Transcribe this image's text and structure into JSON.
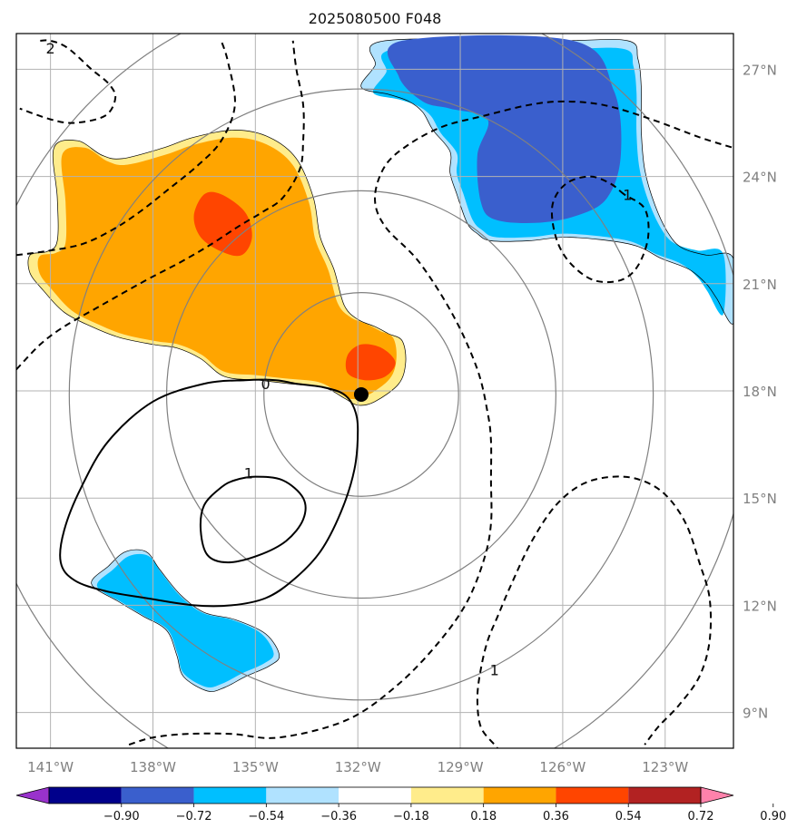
{
  "chart_data": {
    "type": "contour-map",
    "title": "2025080500 F048",
    "projection": "lon-lat",
    "xlim": [
      -142,
      -121
    ],
    "ylim": [
      8,
      28
    ],
    "x_ticks": [
      {
        "value": -141,
        "label": "141°W"
      },
      {
        "value": -138,
        "label": "138°W"
      },
      {
        "value": -135,
        "label": "135°W"
      },
      {
        "value": -132,
        "label": "132°W"
      },
      {
        "value": -129,
        "label": "129°W"
      },
      {
        "value": -126,
        "label": "126°W"
      },
      {
        "value": -123,
        "label": "123°W"
      }
    ],
    "y_ticks": [
      {
        "value": 9,
        "label": "9°N"
      },
      {
        "value": 12,
        "label": "12°N"
      },
      {
        "value": 15,
        "label": "15°N"
      },
      {
        "value": 18,
        "label": "18°N"
      },
      {
        "value": 21,
        "label": "21°N"
      },
      {
        "value": 24,
        "label": "24°N"
      },
      {
        "value": 27,
        "label": "27°N"
      }
    ],
    "grid": true,
    "center": {
      "lon": -131.9,
      "lat": 17.9
    },
    "range_rings_deg": [
      2.85,
      5.7,
      8.55
    ],
    "colorbar": {
      "placement": "bottom",
      "extend": "both",
      "levels": [
        -0.9,
        -0.72,
        -0.54,
        -0.36,
        -0.18,
        0.18,
        0.36,
        0.54,
        0.72,
        0.9
      ],
      "level_labels": [
        "−0.90",
        "−0.72",
        "−0.54",
        "−0.36",
        "−0.18",
        "0.18",
        "0.36",
        "0.54",
        "0.72",
        "0.90"
      ],
      "colors": [
        "#9932cc",
        "#00008b",
        "#3a5fcd",
        "#00bfff",
        "#b0e2ff",
        "#ffffff",
        "#ffec8b",
        "#ffa500",
        "#ff4500",
        "#b22222",
        "#ff82ab"
      ]
    },
    "shaded_regions": [
      {
        "name": "orange-region",
        "min_level": 0.18,
        "points": [
          [
            -141.6,
            21.8
          ],
          [
            -141.1,
            21.9
          ],
          [
            -140.8,
            22.2
          ],
          [
            -140.8,
            23.4
          ],
          [
            -140.9,
            24.8
          ],
          [
            -140.2,
            25.0
          ],
          [
            -139.5,
            24.6
          ],
          [
            -138.9,
            24.5
          ],
          [
            -137.7,
            24.8
          ],
          [
            -136.8,
            25.1
          ],
          [
            -135.6,
            25.3
          ],
          [
            -134.6,
            25.1
          ],
          [
            -133.8,
            24.5
          ],
          [
            -133.3,
            23.4
          ],
          [
            -133.1,
            22.3
          ],
          [
            -132.7,
            21.4
          ],
          [
            -132.4,
            20.4
          ],
          [
            -132.0,
            20.0
          ],
          [
            -131.5,
            19.8
          ],
          [
            -131.1,
            19.6
          ],
          [
            -130.7,
            19.4
          ],
          [
            -130.6,
            18.8
          ],
          [
            -130.8,
            18.2
          ],
          [
            -131.5,
            17.7
          ],
          [
            -132.0,
            17.6
          ],
          [
            -132.4,
            17.8
          ],
          [
            -133.0,
            18.1
          ],
          [
            -134.0,
            18.2
          ],
          [
            -134.9,
            18.3
          ],
          [
            -135.9,
            18.4
          ],
          [
            -136.6,
            18.9
          ],
          [
            -137.3,
            19.2
          ],
          [
            -138.0,
            19.3
          ],
          [
            -139.0,
            19.5
          ],
          [
            -139.8,
            19.8
          ],
          [
            -140.6,
            20.2
          ],
          [
            -141.2,
            20.8
          ],
          [
            -141.6,
            21.3
          ]
        ]
      },
      {
        "name": "blue-region-northeast",
        "min_level": -0.18,
        "points": [
          [
            -131.9,
            26.5
          ],
          [
            -131.5,
            27.1
          ],
          [
            -131.2,
            27.8
          ],
          [
            -126.2,
            27.8
          ],
          [
            -124.1,
            27.8
          ],
          [
            -123.8,
            27.3
          ],
          [
            -123.7,
            26.5
          ],
          [
            -123.7,
            25.3
          ],
          [
            -123.6,
            24.2
          ],
          [
            -123.3,
            23.2
          ],
          [
            -122.9,
            22.4
          ],
          [
            -122.5,
            22.0
          ],
          [
            -121.8,
            21.8
          ],
          [
            -121.0,
            21.7
          ],
          [
            -121.0,
            19.9
          ],
          [
            -121.5,
            20.6
          ],
          [
            -121.8,
            21.0
          ],
          [
            -122.3,
            21.4
          ],
          [
            -123.1,
            21.7
          ],
          [
            -124.0,
            22.1
          ],
          [
            -125.8,
            22.3
          ],
          [
            -127.0,
            22.2
          ],
          [
            -128.1,
            22.2
          ],
          [
            -128.5,
            22.4
          ],
          [
            -128.8,
            22.7
          ],
          [
            -129.1,
            23.5
          ],
          [
            -129.3,
            24.1
          ],
          [
            -129.3,
            24.7
          ],
          [
            -129.8,
            25.3
          ],
          [
            -130.1,
            25.8
          ],
          [
            -130.5,
            26.1
          ],
          [
            -131.1,
            26.3
          ]
        ]
      },
      {
        "name": "blue-region-southwest",
        "min_level": -0.18,
        "points": [
          [
            -139.8,
            12.6
          ],
          [
            -139.3,
            13.1
          ],
          [
            -138.8,
            13.5
          ],
          [
            -138.2,
            13.5
          ],
          [
            -137.8,
            13.0
          ],
          [
            -137.2,
            12.3
          ],
          [
            -136.5,
            11.8
          ],
          [
            -135.6,
            11.6
          ],
          [
            -134.7,
            11.2
          ],
          [
            -134.3,
            10.6
          ],
          [
            -134.6,
            10.3
          ],
          [
            -135.3,
            10.0
          ],
          [
            -135.9,
            9.7
          ],
          [
            -136.4,
            9.6
          ],
          [
            -137.1,
            10.0
          ],
          [
            -137.3,
            10.6
          ],
          [
            -137.6,
            11.3
          ],
          [
            -138.3,
            11.7
          ],
          [
            -139.0,
            12.1
          ]
        ]
      }
    ],
    "contours": [
      {
        "name": "contour-0",
        "style": "solid",
        "label": "0",
        "points": [
          [
            -135.3,
            18.3
          ],
          [
            -134.4,
            18.3
          ],
          [
            -133.8,
            18.2
          ],
          [
            -133.0,
            18.1
          ],
          [
            -132.4,
            17.9
          ],
          [
            -132.1,
            17.5
          ],
          [
            -132.0,
            16.9
          ],
          [
            -132.1,
            15.8
          ],
          [
            -132.5,
            14.6
          ],
          [
            -133.1,
            13.5
          ],
          [
            -133.9,
            12.7
          ],
          [
            -134.7,
            12.2
          ],
          [
            -135.7,
            12.0
          ],
          [
            -136.8,
            12.0
          ],
          [
            -138.2,
            12.2
          ],
          [
            -139.4,
            12.4
          ],
          [
            -140.3,
            12.7
          ],
          [
            -140.7,
            13.2
          ],
          [
            -140.6,
            14.1
          ],
          [
            -140.1,
            15.3
          ],
          [
            -139.3,
            16.6
          ],
          [
            -138.0,
            17.7
          ],
          [
            -136.5,
            18.2
          ]
        ]
      },
      {
        "name": "contour-1-inner",
        "style": "solid",
        "label": "1",
        "points": [
          [
            -136.0,
            15.3
          ],
          [
            -135.6,
            15.5
          ],
          [
            -135.0,
            15.6
          ],
          [
            -134.2,
            15.5
          ],
          [
            -133.6,
            15.0
          ],
          [
            -133.6,
            14.4
          ],
          [
            -134.1,
            13.8
          ],
          [
            -134.9,
            13.4
          ],
          [
            -135.8,
            13.2
          ],
          [
            -136.4,
            13.4
          ],
          [
            -136.6,
            14.1
          ],
          [
            -136.5,
            14.8
          ]
        ]
      },
      {
        "name": "dashed-2-northwest",
        "style": "dashed",
        "label": "2",
        "points": [
          [
            -141.3,
            27.8
          ],
          [
            -141.0,
            27.8
          ],
          [
            -140.5,
            27.6
          ],
          [
            -139.8,
            27.0
          ],
          [
            -139.3,
            26.6
          ],
          [
            -139.1,
            26.2
          ],
          [
            -139.4,
            25.7
          ],
          [
            -140.3,
            25.5
          ],
          [
            -141.0,
            25.6
          ],
          [
            -141.9,
            25.9
          ]
        ]
      },
      {
        "name": "dashed-northwest-a",
        "style": "dashed",
        "points": [
          [
            -142.0,
            18.6
          ],
          [
            -141.3,
            19.3
          ],
          [
            -140.6,
            19.8
          ],
          [
            -139.5,
            20.4
          ],
          [
            -138.2,
            21.1
          ],
          [
            -137.2,
            21.6
          ],
          [
            -136.3,
            22.1
          ],
          [
            -135.5,
            22.6
          ],
          [
            -134.8,
            23.0
          ],
          [
            -134.2,
            23.4
          ],
          [
            -133.7,
            24.2
          ],
          [
            -133.6,
            25.0
          ],
          [
            -133.6,
            26.0
          ],
          [
            -133.8,
            27.0
          ],
          [
            -133.9,
            27.8
          ]
        ]
      },
      {
        "name": "dashed-northwest-b",
        "style": "dashed",
        "points": [
          [
            -142.0,
            21.8
          ],
          [
            -141.2,
            21.9
          ],
          [
            -140.1,
            22.1
          ],
          [
            -139.2,
            22.5
          ],
          [
            -138.4,
            23.0
          ],
          [
            -137.6,
            23.6
          ],
          [
            -136.7,
            24.3
          ],
          [
            -136.0,
            25.0
          ],
          [
            -135.6,
            26.0
          ],
          [
            -135.8,
            27.2
          ],
          [
            -136.0,
            27.8
          ]
        ]
      },
      {
        "name": "dashed-east-large",
        "style": "dashed",
        "points": [
          [
            -138.7,
            8.1
          ],
          [
            -138.0,
            8.3
          ],
          [
            -137.0,
            8.4
          ],
          [
            -135.7,
            8.4
          ],
          [
            -134.3,
            8.3
          ],
          [
            -132.3,
            8.8
          ],
          [
            -130.8,
            9.8
          ],
          [
            -129.6,
            11.0
          ],
          [
            -128.8,
            12.1
          ],
          [
            -128.3,
            13.3
          ],
          [
            -128.1,
            14.3
          ],
          [
            -128.1,
            15.5
          ],
          [
            -128.1,
            16.6
          ],
          [
            -128.2,
            17.4
          ],
          [
            -128.5,
            18.6
          ],
          [
            -129.2,
            20.1
          ],
          [
            -130.2,
            21.6
          ],
          [
            -131.2,
            22.6
          ],
          [
            -131.5,
            23.4
          ],
          [
            -131.2,
            24.3
          ],
          [
            -130.5,
            24.9
          ],
          [
            -129.5,
            25.4
          ],
          [
            -128.3,
            25.7
          ],
          [
            -127.0,
            26.0
          ],
          [
            -126.0,
            26.1
          ],
          [
            -124.8,
            26.0
          ],
          [
            -123.4,
            25.6
          ],
          [
            -122.0,
            25.1
          ],
          [
            -121.0,
            24.8
          ]
        ]
      },
      {
        "name": "dashed-northeast-small",
        "style": "dashed",
        "points": [
          [
            -124.2,
            23.5
          ],
          [
            -124.6,
            23.8
          ],
          [
            -125.2,
            24.0
          ],
          [
            -125.9,
            23.8
          ],
          [
            -126.3,
            23.2
          ],
          [
            -126.2,
            22.3
          ],
          [
            -125.8,
            21.6
          ],
          [
            -125.1,
            21.1
          ],
          [
            -124.3,
            21.1
          ],
          [
            -123.8,
            21.5
          ],
          [
            -123.5,
            22.3
          ],
          [
            -123.6,
            23.1
          ]
        ]
      },
      {
        "name": "dashed-1-southeast",
        "style": "dashed",
        "label": "1",
        "points": [
          [
            -127.8,
            7.9
          ],
          [
            -128.0,
            8.1
          ],
          [
            -128.4,
            8.6
          ],
          [
            -128.5,
            9.4
          ],
          [
            -128.4,
            10.2
          ],
          [
            -128.2,
            11.0
          ],
          [
            -127.9,
            11.7
          ],
          [
            -127.5,
            12.6
          ],
          [
            -126.9,
            13.8
          ],
          [
            -126.2,
            14.8
          ],
          [
            -125.4,
            15.4
          ],
          [
            -124.5,
            15.6
          ],
          [
            -123.7,
            15.5
          ],
          [
            -123.0,
            15.1
          ],
          [
            -122.4,
            14.3
          ],
          [
            -122.0,
            13.2
          ],
          [
            -121.7,
            12.2
          ],
          [
            -121.7,
            11.0
          ],
          [
            -122.0,
            10.0
          ],
          [
            -122.6,
            9.2
          ],
          [
            -123.2,
            8.6
          ],
          [
            -123.6,
            8.1
          ]
        ]
      }
    ],
    "contour_labels": [
      {
        "text": "0",
        "lon": -134.7,
        "lat": 18.2
      },
      {
        "text": "1",
        "lon": -135.2,
        "lat": 15.7
      },
      {
        "text": "2",
        "lon": -141.0,
        "lat": 27.6
      },
      {
        "text": "1",
        "lon": -128.0,
        "lat": 10.2
      },
      {
        "text": "1",
        "lon": -124.1,
        "lat": 23.5
      }
    ]
  }
}
